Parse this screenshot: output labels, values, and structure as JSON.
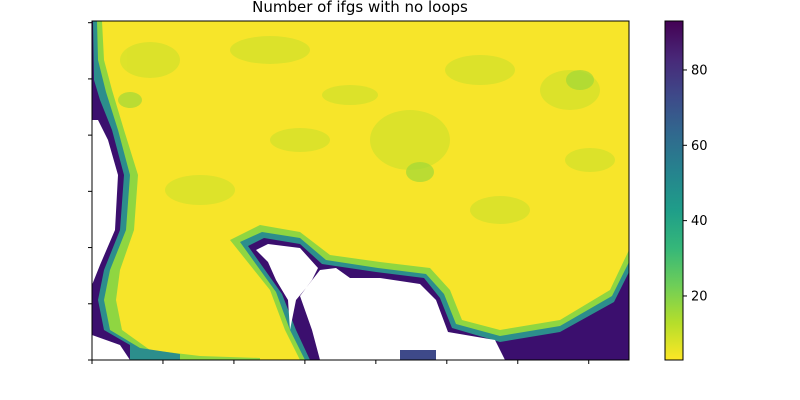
{
  "chart_data": {
    "type": "heatmap",
    "title": "Number of ifgs with no loops",
    "xlabel": "",
    "ylabel": "",
    "colorbar": {
      "colormap": "viridis_r",
      "range": [
        3,
        93
      ],
      "ticks": [
        20,
        40,
        60,
        80
      ],
      "tick_labels": [
        "20",
        "40",
        "60",
        "80"
      ],
      "placement": "right"
    },
    "description_of_field": {
      "background_value": 3,
      "high_value_coastline": true,
      "nodata_regions": [
        "left-edge",
        "bottom-center"
      ]
    },
    "x_ticks_count": 8,
    "y_ticks_count": 7
  },
  "colors": {
    "viridis": [
      "#440154",
      "#482878",
      "#3e4989",
      "#31688e",
      "#26828e",
      "#1f9e89",
      "#35b779",
      "#6ece58",
      "#b5de2b",
      "#fde725"
    ],
    "nodata": "#ffffff"
  }
}
